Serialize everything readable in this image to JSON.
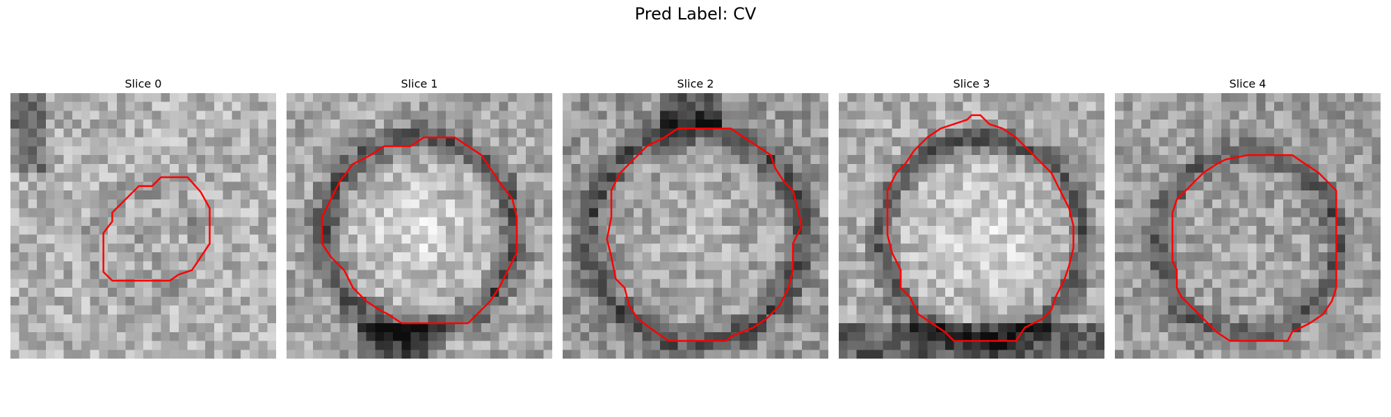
{
  "figure": {
    "title": "Pred Label: CV"
  },
  "panels": [
    {
      "title": "Slice 0"
    },
    {
      "title": "Slice 1"
    },
    {
      "title": "Slice 2"
    },
    {
      "title": "Slice 3"
    },
    {
      "title": "Slice 4"
    }
  ],
  "colors": {
    "contour": "#ff0000",
    "colormap": "gray"
  }
}
